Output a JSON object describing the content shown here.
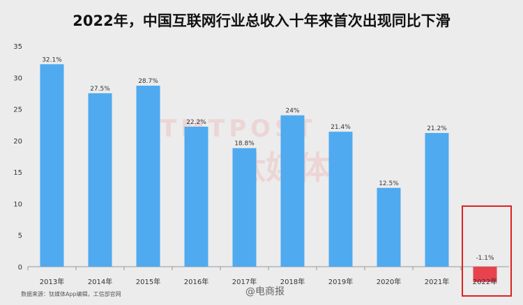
{
  "colors": {
    "bar_positive": "#4faaf0",
    "bar_negative": "#e8424f",
    "highlight": "#e02020",
    "axis_text": "#333333",
    "grid": "#d6d6d6"
  },
  "watermark": {
    "logo_text": "TMTPOST",
    "logo_cn": "钛媒体",
    "weibo_label": "@电商报"
  },
  "source": "数据来源：钛媒体App编辑，工信部官网",
  "chart_data": {
    "type": "bar",
    "title": "2022年，中国互联网行业总收入十年来首次出现同比下滑",
    "xlabel": "",
    "ylabel": "",
    "categories": [
      "2013年",
      "2014年",
      "2015年",
      "2016年",
      "2017年",
      "2018年",
      "2019年",
      "2020年",
      "2021年",
      "2022年"
    ],
    "values": [
      32.1,
      27.5,
      28.7,
      22.2,
      18.8,
      24,
      21.4,
      12.5,
      21.2,
      -1.1
    ],
    "data_labels": [
      "32.1%",
      "27.5%",
      "28.7%",
      "22.2%",
      "18.8%",
      "24%",
      "21.4%",
      "12.5%",
      "21.2%",
      "-1.1%"
    ],
    "ylim": [
      0,
      35
    ],
    "yticks": [
      0,
      5,
      10,
      15,
      20,
      25,
      30,
      35
    ],
    "grid": false,
    "highlighted_category": "2022年"
  }
}
